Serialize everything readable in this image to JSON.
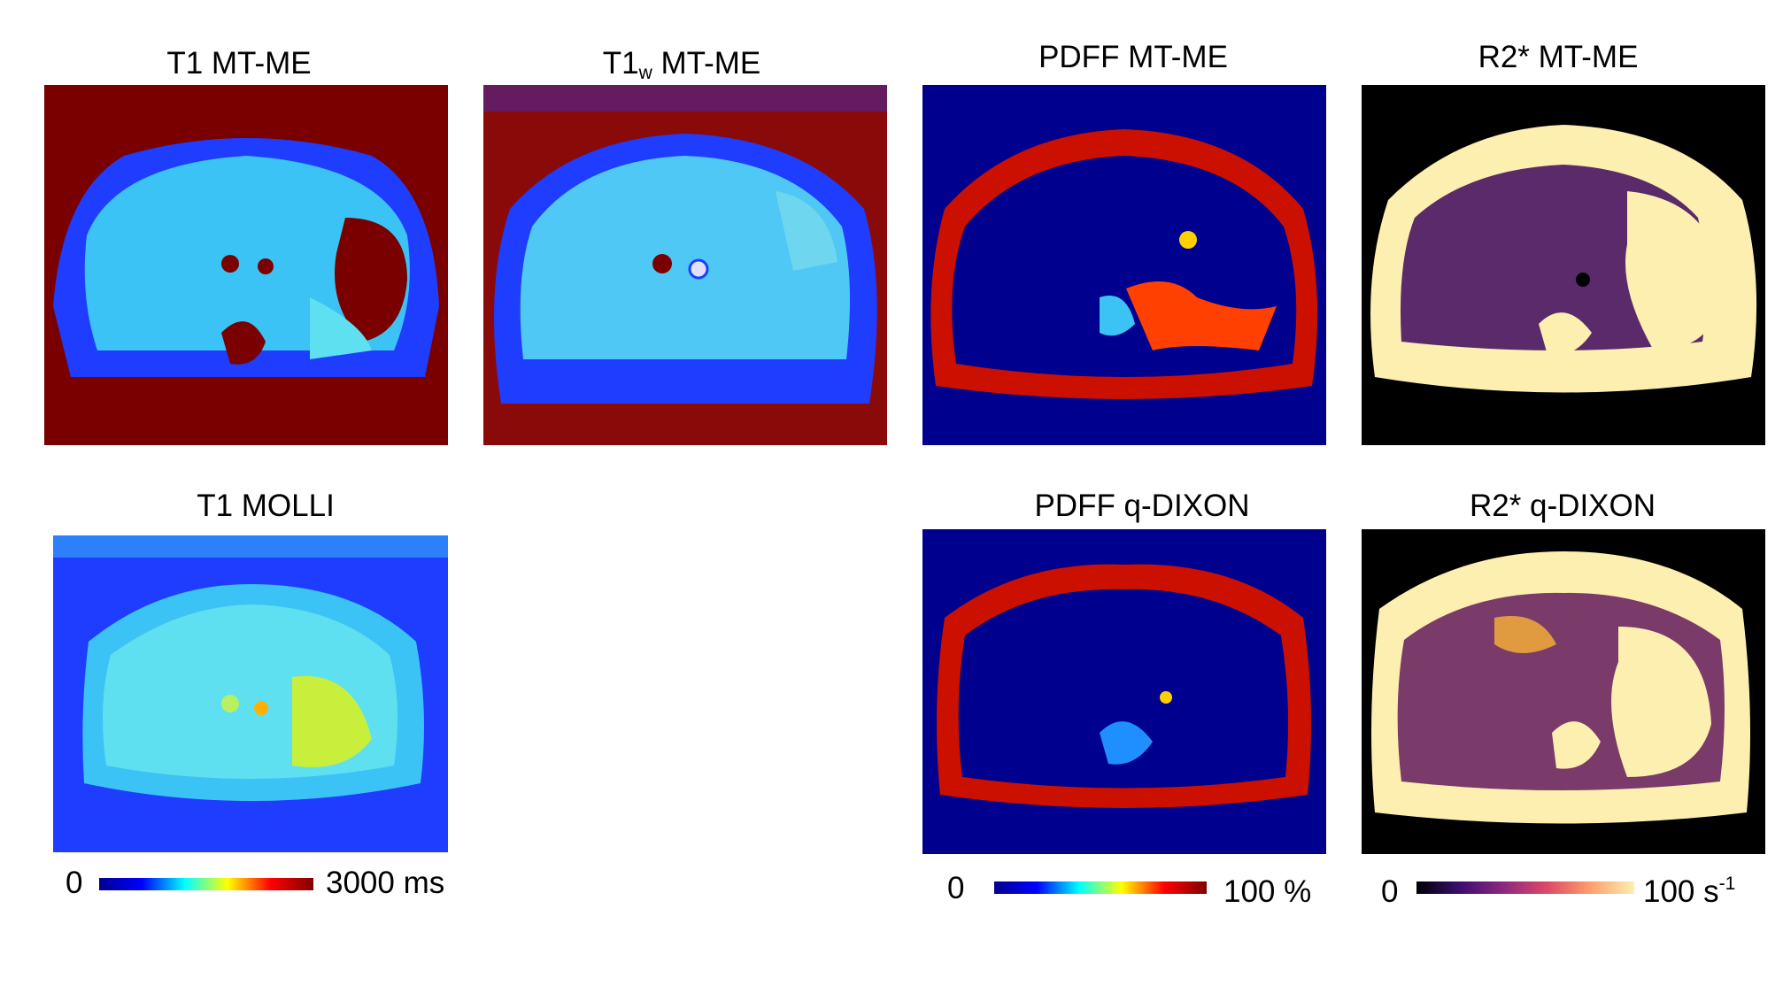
{
  "panels": {
    "t1_mtme": {
      "title": "T1 MT-ME"
    },
    "t1w_mtme": {
      "title_main": "T1",
      "title_sub": "w",
      "title_rest": " MT-ME"
    },
    "pdff_mtme": {
      "title": "PDFF MT-ME"
    },
    "r2s_mtme": {
      "title": "R2* MT-ME"
    },
    "t1_molli": {
      "title": "T1 MOLLI"
    },
    "pdff_qdixon": {
      "title": "PDFF q-DIXON"
    },
    "r2s_qdixon": {
      "title": "R2* q-DIXON"
    }
  },
  "colorbars": {
    "t1": {
      "min": "0",
      "max": "3000 ms",
      "colormap": "jet"
    },
    "pdff": {
      "min": "0",
      "max": "100 %",
      "colormap": "jet"
    },
    "r2s": {
      "min": "0",
      "max_main": "100 s",
      "max_sup": "-1",
      "colormap": "inferno"
    }
  },
  "colors": {
    "jet_dark_red": "#7a0000",
    "jet_dark_blue": "#00008f",
    "jet_blue": "#1f3dff",
    "jet_light_blue": "#3cc3f5",
    "jet_cyan": "#5fe0f0",
    "inferno_black": "#000000",
    "inferno_purple": "#5a2a6a",
    "inferno_yellow": "#fcefb0"
  }
}
